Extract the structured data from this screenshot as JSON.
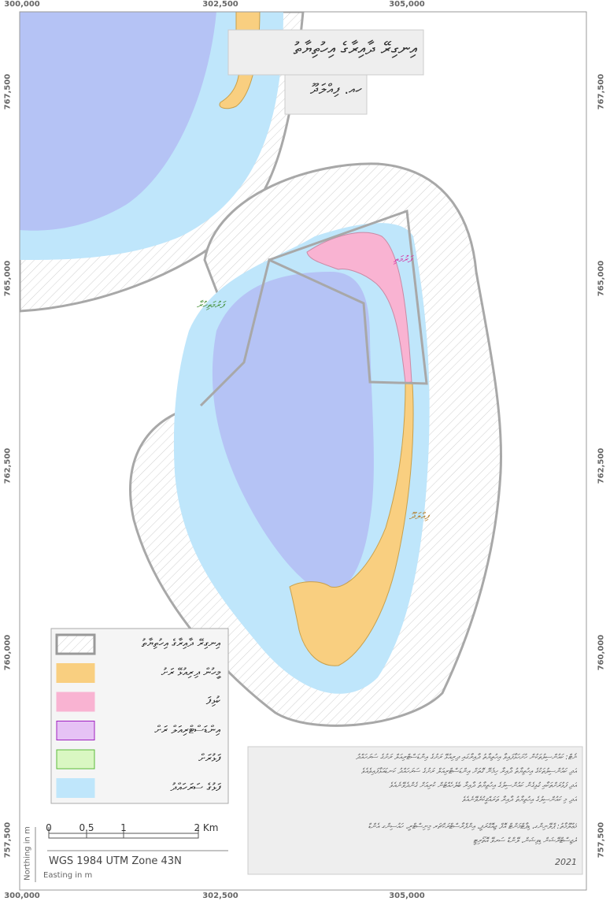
{
  "title": {
    "line1": "އިނގިރޭ ދާއިރާގެ އިހުތިޔާތު",
    "line2": "ހއ. ފިއްލަދޫ"
  },
  "easting_ticks": [
    "300,000",
    "302,500",
    "305,000"
  ],
  "northing_ticks": [
    "767,500",
    "765,000",
    "762,500",
    "760,000",
    "757,500"
  ],
  "place_labels": {
    "pink": "ފަރުމަތި",
    "green": "ފަރުމަތިހުރާ",
    "island": "ފިއްލަދޫ"
  },
  "legend": [
    "އިނގިރޭ ދާއިރާގެ އިހުތިޔާތު",
    "މީހުން ދިރިއުޅޭ ރަށު",
    "ކުޅިފަ",
    "އިންޑަސްޓްރިއަލް ރަށް",
    "ފަޅުރަށް",
    "ފަޅުގެ ސަރަހައްދު"
  ],
  "scale_bar": {
    "ticks": [
      "0",
      "0.5",
      "1",
      "2 Km"
    ],
    "projection": "WGS 1984 UTM Zone 43N"
  },
  "axis_titles": {
    "northing": "Northing in m",
    "easting": "Easting in m"
  },
  "notes": {
    "lines": [
      "ނޯޓް: ކައުންސިލުތަކުން ހުށަހަޅާފައިވާ އިހުތިޔާތު ދާއިރާގައި ދިރިއުޅޭ ރަށުގެ އިންޑަސްޓްރިއަލް ރަށުގެ ސަރަހައްދު",
      "އަދި ކައުންސިލުތަކުގެ އިހުތިޔާތު ދާއިރާ ހިމެނޭ ގޮތަށް އިންޑަސްޓްރިއަލް ރަށުގެ ސަރަހައްދު ކަނޑައަޅާފައިވެއެވެ",
      "އަދި ފަޅުރަށްތަކާއި ގުޅިގެން ކައުންސިލުގެ އިހުތިޔާތު ދާއިރާ ބެލެހެއްޓުން ކުރިއަށް ގެންދެވޭނެއެވެ",
      "އަދި މި ކައުންސިލުގެ އިހުތިޔާތު ދާއިރާ ތަރައްޤީކުރެވޭނެއެވެ",
      "މަޢުލޫމާތު: ޕްލޭނިންގ، ޑިޕާޓްމަންޓް އޮފް ޖިއޮގްރަފީ، އިންފްރާސްޓްރަކްޗަރ މިނިސްޓްރީ، ހައުސިންގ އެންޑް",
      "ރެޖިސްޓްރޭޝަން ޑިވިޝަން، ލޭންޑް ސަރވޭ އޮތޯރިޓީ"
    ],
    "year": "2021"
  }
}
